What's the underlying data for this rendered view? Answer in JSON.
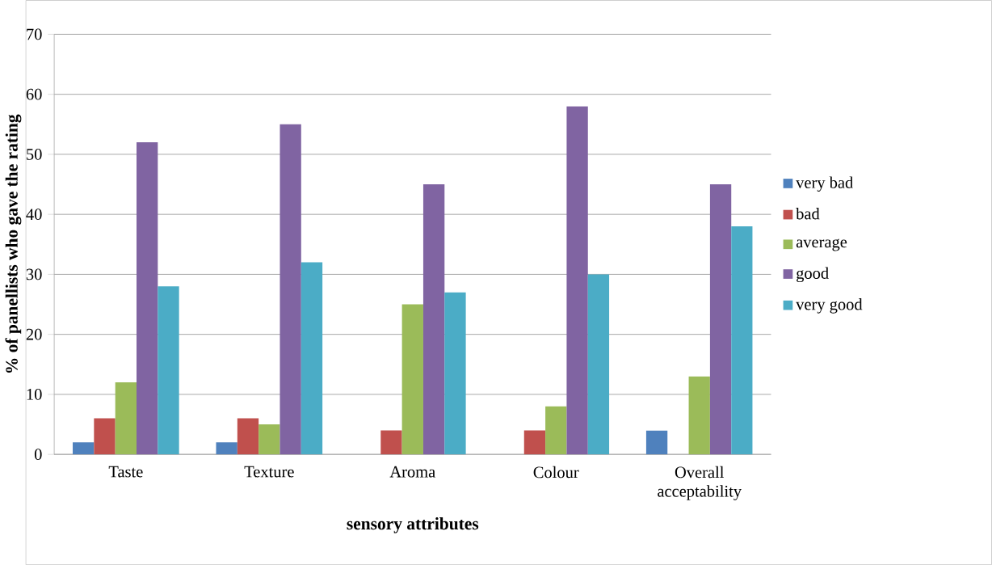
{
  "chart_data": {
    "type": "bar",
    "xlabel": "sensory attributes",
    "ylabel": "% of panellists who gave the rating",
    "categories": [
      "Taste",
      "Texture",
      "Aroma",
      "Colour",
      "Overall acceptability"
    ],
    "series": [
      {
        "name": "very bad",
        "color": "#4f81bd",
        "values": [
          2,
          2,
          0,
          0,
          4
        ]
      },
      {
        "name": "bad",
        "color": "#c0504d",
        "values": [
          6,
          6,
          4,
          4,
          0
        ]
      },
      {
        "name": "average",
        "color": "#9bbb59",
        "values": [
          12,
          5,
          25,
          8,
          13
        ]
      },
      {
        "name": "good",
        "color": "#8064a2",
        "values": [
          52,
          55,
          45,
          58,
          45
        ]
      },
      {
        "name": "very good",
        "color": "#4bacc6",
        "values": [
          28,
          32,
          27,
          30,
          38
        ]
      }
    ],
    "ylim": [
      0,
      70
    ],
    "yticks": [
      0,
      10,
      20,
      30,
      40,
      50,
      60,
      70
    ],
    "grid": "y",
    "legend": "right"
  }
}
